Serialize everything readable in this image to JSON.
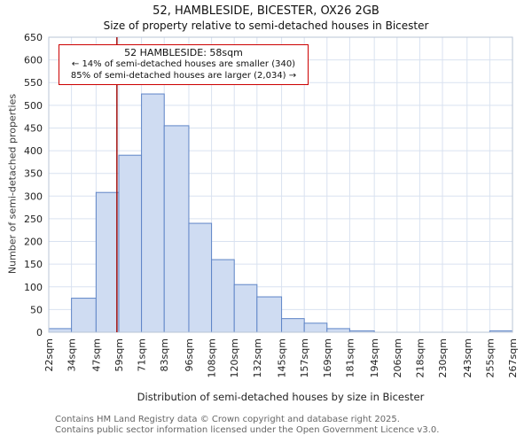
{
  "header": {
    "title": "52, HAMBLESIDE, BICESTER, OX26 2GB",
    "subtitle": "Size of property relative to semi-detached houses in Bicester"
  },
  "annotation": {
    "line1": "52 HAMBLESIDE: 58sqm",
    "line2": "← 14% of semi-detached houses are smaller (340)",
    "line3": "85% of semi-detached houses are larger (2,034) →"
  },
  "footer": {
    "line1": "Contains HM Land Registry data © Crown copyright and database right 2025.",
    "line2": "Contains public sector information licensed under the Open Government Licence v3.0."
  },
  "chart_data": {
    "type": "bar",
    "title": "52, HAMBLESIDE, BICESTER, OX26 2GB",
    "subtitle": "Size of property relative to semi-detached houses in Bicester",
    "xlabel": "Distribution of semi-detached houses by size in Bicester",
    "ylabel": "Number of semi-detached properties",
    "ylim": [
      0,
      650
    ],
    "ytick_step": 50,
    "grid": true,
    "bin_edges_sqm": [
      22,
      34,
      47,
      59,
      71,
      83,
      96,
      108,
      120,
      132,
      145,
      157,
      169,
      181,
      194,
      206,
      218,
      230,
      243,
      255,
      267
    ],
    "tick_labels": [
      "22sqm",
      "34sqm",
      "47sqm",
      "59sqm",
      "71sqm",
      "83sqm",
      "96sqm",
      "108sqm",
      "120sqm",
      "132sqm",
      "145sqm",
      "157sqm",
      "169sqm",
      "181sqm",
      "194sqm",
      "206sqm",
      "218sqm",
      "230sqm",
      "243sqm",
      "255sqm",
      "267sqm"
    ],
    "values": [
      8,
      75,
      308,
      390,
      525,
      455,
      240,
      160,
      105,
      78,
      30,
      20,
      8,
      3,
      0,
      0,
      0,
      0,
      0,
      3
    ],
    "marker": {
      "value_sqm": 58,
      "label": "52 HAMBLESIDE: 58sqm",
      "smaller_pct": 14,
      "smaller_count": 340,
      "larger_pct": 85,
      "larger_count": 2034
    },
    "colors": {
      "bar_fill": "#cfdcf2",
      "bar_border": "#5f85c7",
      "grid": "#d9e2f0",
      "frame": "#b9c4d6",
      "marker_line": "#a01010",
      "annotation_border": "#cc0000"
    }
  }
}
